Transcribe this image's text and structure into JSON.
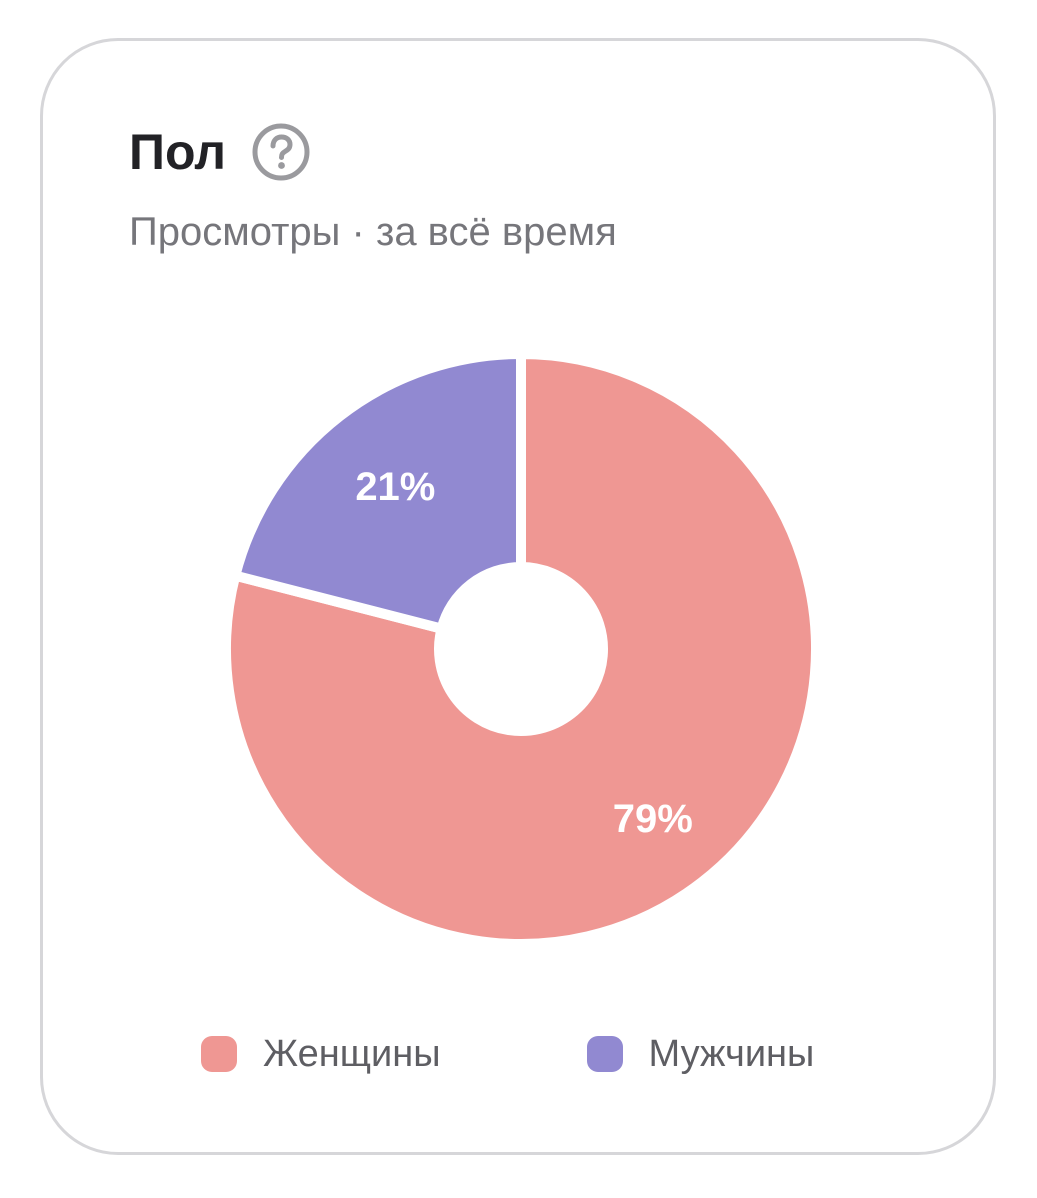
{
  "card": {
    "title": "Пол",
    "help_icon": "question-circle-icon",
    "subtitle": "Просмотры · за всё время"
  },
  "colors": {
    "women": "#ef9793",
    "men": "#9189d1",
    "border": "#d6d6d9"
  },
  "chart_data": {
    "type": "pie",
    "donut": true,
    "title": "Пол",
    "subtitle": "Просмотры · за всё время",
    "categories": [
      "Женщины",
      "Мужчины"
    ],
    "values": [
      79,
      21
    ],
    "labels": [
      "79%",
      "21%"
    ],
    "colors": [
      "#ef9793",
      "#9189d1"
    ],
    "legend_position": "bottom"
  }
}
